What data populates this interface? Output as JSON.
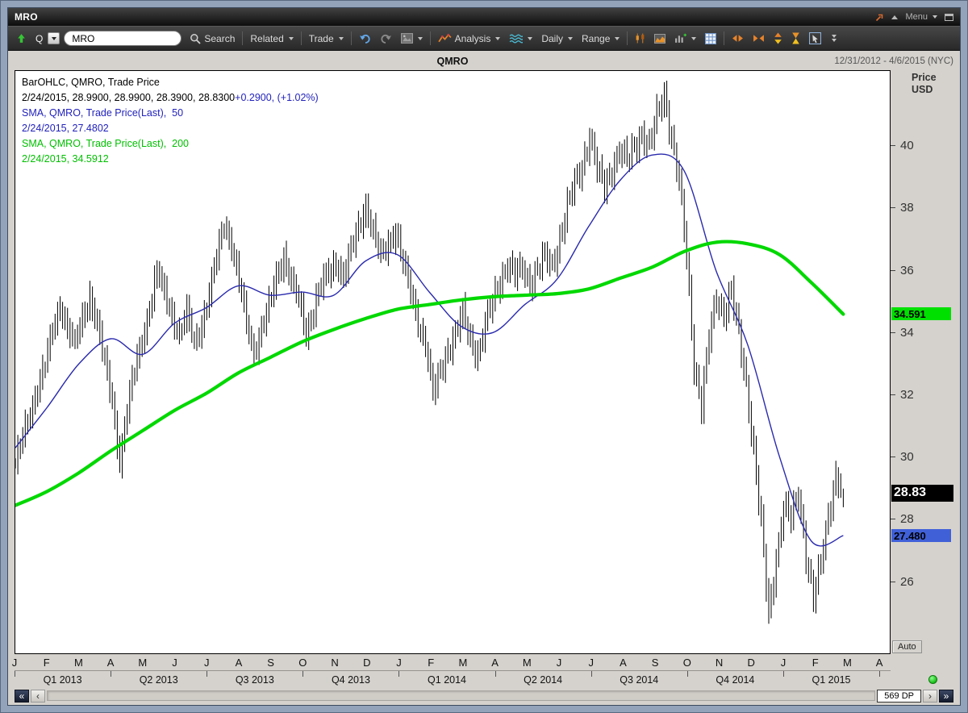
{
  "window": {
    "title": "MRO",
    "menu_label": "Menu"
  },
  "toolbar": {
    "quote_type": "Q",
    "symbol_value": "MRO",
    "search_label": "Search",
    "related_label": "Related",
    "trade_label": "Trade",
    "analysis_label": "Analysis",
    "daily_label": "Daily",
    "range_label": "Range"
  },
  "header": {
    "chart_title": "QMRO",
    "date_range": "12/31/2012 - 4/6/2015 (NYC)"
  },
  "axis": {
    "price_title_line1": "Price",
    "price_title_line2": "USD",
    "auto_label": "Auto"
  },
  "legend_lines": [
    {
      "parts": [
        {
          "text": "BarOHLC, QMRO, Trade Price",
          "color": "#000000"
        }
      ]
    },
    {
      "parts": [
        {
          "text": "2/24/2015, 28.9900, 28.9900, 28.3900, 28.8300",
          "color": "#000000"
        },
        {
          "text": "+0.2900, (+1.02%)",
          "color": "#2222bb"
        }
      ]
    },
    {
      "parts": [
        {
          "text": "SMA, QMRO, Trade Price(Last),  50",
          "color": "#2222bb"
        }
      ]
    },
    {
      "parts": [
        {
          "text": "2/24/2015, 27.4802",
          "color": "#2222bb"
        }
      ]
    },
    {
      "parts": [
        {
          "text": "SMA, QMRO, Trade Price(Last),  200",
          "color": "#00c000"
        }
      ]
    },
    {
      "parts": [
        {
          "text": "2/24/2015, 34.5912",
          "color": "#00c000"
        }
      ]
    }
  ],
  "price_tags": [
    {
      "text": "34.591",
      "value": 34.5912,
      "bg": "#00e000",
      "fg": "#000000",
      "big": false
    },
    {
      "text": "28.83",
      "value": 28.83,
      "bg": "#000000",
      "fg": "#ffffff",
      "big": true
    },
    {
      "text": "27.480",
      "value": 27.4802,
      "bg": "#4060d8",
      "fg": "#000000",
      "big": false
    }
  ],
  "footer": {
    "datapoints_label": "569 DP"
  },
  "icons": {
    "scroll_far_left": "«",
    "scroll_left": "‹",
    "scroll_right": "›",
    "scroll_far_right": "»"
  },
  "chart_data": {
    "type": "ohlc-bar",
    "title": "QMRO",
    "xlabel": "",
    "ylabel": "Price USD",
    "date_range": "12/31/2012 - 4/6/2015 (NYC)",
    "ylim": [
      23.7,
      42.4
    ],
    "yticks": [
      26,
      28,
      30,
      32,
      34,
      36,
      38,
      40
    ],
    "grid": false,
    "months_total": 27.3,
    "data_end_month": 25.85,
    "x_month_labels": [
      "J",
      "F",
      "M",
      "A",
      "M",
      "J",
      "J",
      "A",
      "S",
      "O",
      "N",
      "D",
      "J",
      "F",
      "M",
      "A",
      "M",
      "J",
      "J",
      "A",
      "S",
      "O",
      "N",
      "D",
      "J",
      "F",
      "M",
      "A"
    ],
    "x_quarter_labels": [
      "Q1 2013",
      "Q2 2013",
      "Q3 2013",
      "Q4 2013",
      "Q1 2014",
      "Q2 2014",
      "Q3 2014",
      "Q4 2014",
      "Q1 2015"
    ],
    "price_weekly_closes": [
      29.8,
      30.6,
      31.4,
      32.3,
      33.0,
      34.0,
      34.9,
      34.2,
      33.6,
      34.4,
      35.2,
      34.3,
      33.0,
      31.8,
      29.9,
      31.5,
      32.8,
      33.8,
      34.8,
      35.9,
      35.3,
      34.6,
      33.9,
      34.6,
      33.7,
      34.3,
      35.2,
      36.4,
      37.6,
      36.8,
      35.6,
      34.3,
      33.4,
      34.1,
      34.8,
      35.8,
      36.5,
      35.6,
      35.0,
      34.0,
      34.8,
      35.5,
      35.9,
      36.3,
      35.8,
      36.6,
      37.4,
      38.1,
      37.2,
      36.4,
      36.9,
      37.3,
      36.2,
      35.3,
      34.4,
      33.6,
      32.0,
      32.8,
      33.5,
      33.9,
      34.6,
      33.8,
      33.3,
      34.2,
      35.0,
      35.7,
      36.2,
      35.8,
      36.1,
      35.6,
      36.0,
      36.4,
      36.2,
      37.0,
      38.0,
      38.8,
      39.4,
      40.3,
      39.2,
      38.7,
      39.3,
      39.8,
      39.5,
      40.0,
      40.4,
      39.9,
      41.0,
      41.7,
      40.2,
      38.8,
      36.5,
      33.0,
      31.6,
      33.8,
      35.2,
      34.6,
      35.3,
      33.9,
      32.4,
      30.2,
      27.8,
      24.9,
      26.8,
      28.4,
      28.0,
      28.9,
      26.9,
      25.4,
      26.6,
      28.2,
      29.4,
      28.83
    ],
    "sma50_points": [
      30.3,
      31.6,
      33.0,
      33.8,
      33.3,
      34.3,
      34.8,
      35.5,
      35.2,
      35.3,
      35.2,
      36.3,
      36.5,
      35.3,
      34.2,
      34.0,
      34.9,
      35.7,
      37.4,
      38.9,
      39.7,
      39.2,
      36.0,
      33.6,
      30.0,
      27.3,
      27.48
    ],
    "sma200_points": [
      28.45,
      28.9,
      29.5,
      30.2,
      30.85,
      31.5,
      32.05,
      32.7,
      33.2,
      33.7,
      34.1,
      34.45,
      34.75,
      34.9,
      35.05,
      35.15,
      35.2,
      35.25,
      35.4,
      35.75,
      36.1,
      36.6,
      36.9,
      36.85,
      36.5,
      35.6,
      34.59
    ],
    "last_bar": {
      "date": "2/24/2015",
      "open": 28.99,
      "high": 28.99,
      "low": 28.39,
      "close": 28.83,
      "change": "+0.2900",
      "change_pct": "(+1.02%)"
    },
    "sma50_last": 27.4802,
    "sma200_last": 34.5912,
    "colors": {
      "price": "#000000",
      "sma50": "#2a2aae",
      "sma200": "#00d800"
    }
  }
}
